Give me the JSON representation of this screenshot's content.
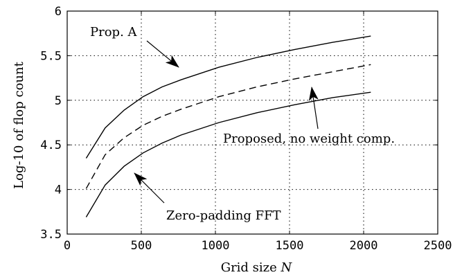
{
  "chart_data": {
    "type": "line",
    "xlabel": "Grid size",
    "xlabel_var": "N",
    "ylabel": "Log-10 of flop count",
    "xlim": [
      0,
      2500
    ],
    "ylim": [
      3.5,
      6
    ],
    "xticks": [
      0,
      500,
      1000,
      1500,
      2000,
      2500
    ],
    "yticks": [
      3.5,
      4,
      4.5,
      5,
      5.5,
      6
    ],
    "xtick_labels": [
      "0",
      "500",
      "1000",
      "1500",
      "2000",
      "2500"
    ],
    "ytick_labels": [
      "3.5",
      "4",
      "4.5",
      "5",
      "5.5",
      "6"
    ],
    "grid": true,
    "series": [
      {
        "style": "solid",
        "x": [
          128,
          256,
          384,
          512,
          640,
          768,
          1024,
          1280,
          1536,
          1792,
          2048
        ],
        "values": [
          4.35,
          4.69,
          4.89,
          5.04,
          5.15,
          5.23,
          5.37,
          5.48,
          5.57,
          5.65,
          5.72
        ]
      },
      {
        "style": "dashed",
        "x": [
          128,
          256,
          384,
          512,
          640,
          768,
          1024,
          1280,
          1536,
          1792,
          2048
        ],
        "values": [
          4.01,
          4.39,
          4.58,
          4.72,
          4.82,
          4.9,
          5.04,
          5.15,
          5.24,
          5.32,
          5.4
        ]
      },
      {
        "style": "solid",
        "x": [
          128,
          256,
          384,
          512,
          640,
          768,
          1024,
          1280,
          1536,
          1792,
          2048
        ],
        "values": [
          3.69,
          4.05,
          4.26,
          4.41,
          4.52,
          4.61,
          4.75,
          4.86,
          4.95,
          5.03,
          5.09
        ]
      }
    ],
    "annotations": [
      {
        "text": "Prop. A",
        "points_to_series": 0
      },
      {
        "text": "Proposed, no weight comp.",
        "points_to_series": 1
      },
      {
        "text": "Zero-padding FFT",
        "points_to_series": 2
      }
    ]
  }
}
